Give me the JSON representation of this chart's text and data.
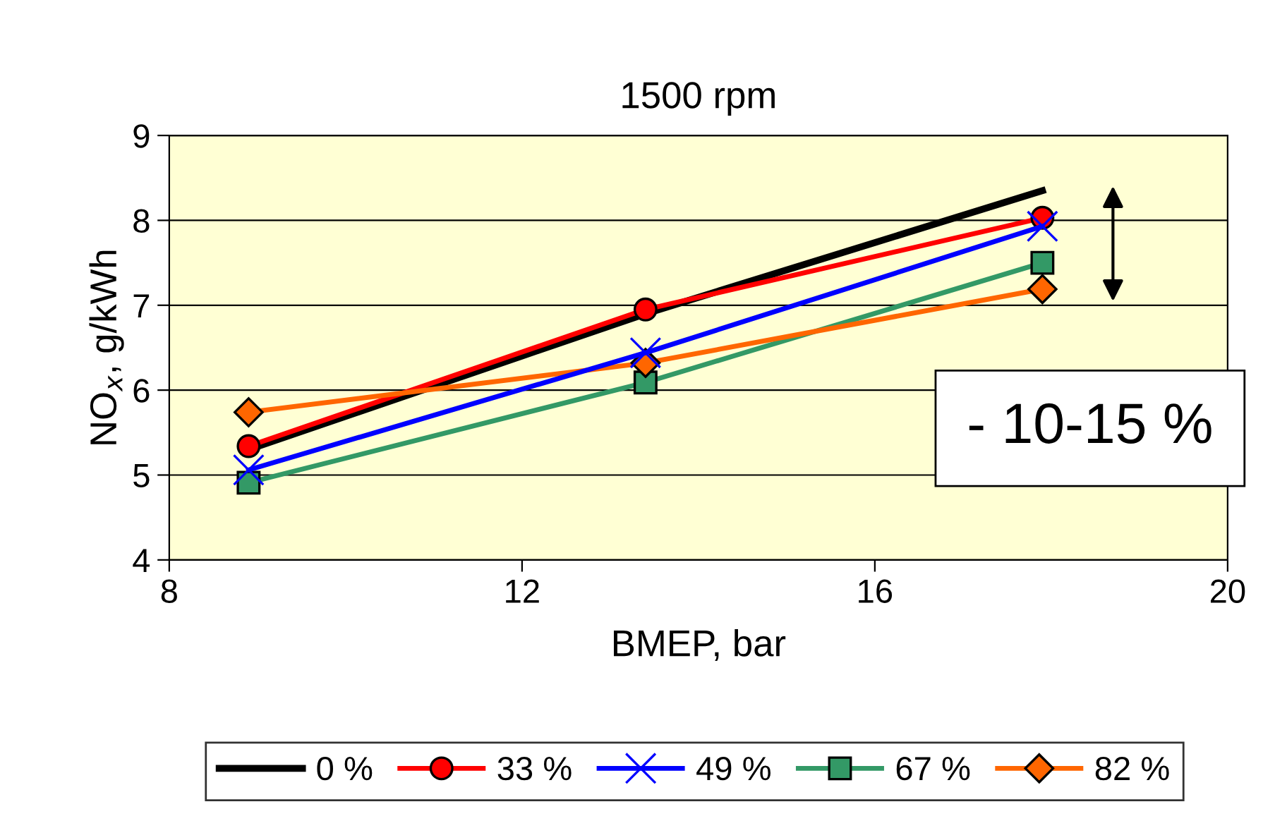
{
  "chart_data": {
    "type": "line",
    "title": "1500 rpm",
    "xlabel": "BMEP, bar",
    "ylabel": "NO$_{x}$, g/kWh",
    "x": [
      8.9,
      13.4,
      17.9
    ],
    "series": [
      {
        "name": "0 %",
        "color": "#000000",
        "marker": "none",
        "values": [
          5.3,
          6.9,
          8.35
        ]
      },
      {
        "name": "33 %",
        "color": "#ff0000",
        "marker": "circle",
        "values": [
          5.34,
          6.95,
          8.03
        ]
      },
      {
        "name": "49 %",
        "color": "#0000ff",
        "marker": "cross",
        "values": [
          5.06,
          6.44,
          7.93
        ]
      },
      {
        "name": "67 %",
        "color": "#339966",
        "marker": "square",
        "values": [
          4.91,
          6.09,
          7.5
        ]
      },
      {
        "name": "82 %",
        "color": "#ff6600",
        "marker": "diamond",
        "values": [
          5.74,
          6.32,
          7.19
        ]
      }
    ],
    "xlim": [
      8,
      20
    ],
    "xticks": [
      8,
      12,
      16,
      20
    ],
    "ylim": [
      4,
      9
    ],
    "yticks": [
      4,
      5,
      6,
      7,
      8,
      9
    ],
    "grid": "y",
    "legend": "bottom",
    "annotations": [
      "- 10-15 %"
    ]
  }
}
